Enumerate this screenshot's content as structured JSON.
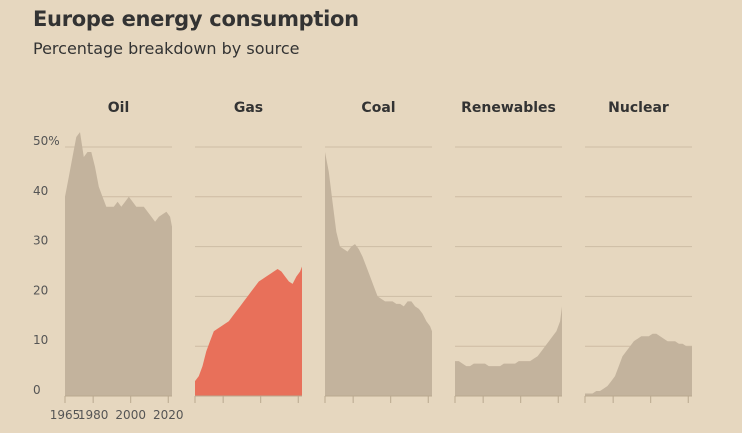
{
  "title": "Europe energy consumption",
  "subtitle": "Percentage breakdown by source",
  "colors": {
    "background": "#e6d7bf",
    "area_default": "#c3b39d",
    "area_highlight": "#e8705a",
    "grid": "#cdbca4"
  },
  "chart_data": {
    "type": "area",
    "ylim": [
      0,
      50
    ],
    "yticks": [
      0,
      10,
      20,
      30,
      40,
      50
    ],
    "ytick_labels": [
      "0",
      "10",
      "20",
      "30",
      "40",
      "50%"
    ],
    "xlim": [
      1965,
      2022
    ],
    "xticks": [
      1965,
      1980,
      2000,
      2020
    ],
    "xtick_labels": [
      "1965",
      "1980",
      "2000",
      "2020"
    ],
    "grid": true,
    "panels": [
      {
        "name": "Oil",
        "highlight": false,
        "x": [
          1965,
          1967,
          1969,
          1971,
          1973,
          1975,
          1977,
          1979,
          1981,
          1983,
          1985,
          1987,
          1989,
          1991,
          1993,
          1995,
          1997,
          1999,
          2001,
          2003,
          2005,
          2007,
          2009,
          2011,
          2013,
          2015,
          2017,
          2019,
          2021,
          2022
        ],
        "values": [
          40,
          44,
          48,
          52,
          53,
          48,
          49,
          49,
          46,
          42,
          40,
          38,
          38,
          38,
          39,
          38,
          39,
          40,
          39,
          38,
          38,
          38,
          37,
          36,
          35,
          36,
          36.5,
          37,
          36,
          34
        ]
      },
      {
        "name": "Gas",
        "highlight": true,
        "x": [
          1965,
          1967,
          1969,
          1971,
          1973,
          1975,
          1977,
          1979,
          1981,
          1983,
          1985,
          1987,
          1989,
          1991,
          1993,
          1995,
          1997,
          1999,
          2001,
          2003,
          2005,
          2007,
          2009,
          2011,
          2013,
          2015,
          2017,
          2019,
          2021,
          2022
        ],
        "values": [
          3,
          4,
          6,
          9,
          11,
          13,
          13.5,
          14,
          14.5,
          15,
          16,
          17,
          18,
          19,
          20,
          21,
          22,
          23,
          23.5,
          24,
          24.5,
          25,
          25.5,
          25,
          24,
          23,
          22.5,
          24,
          25,
          26
        ]
      },
      {
        "name": "Coal",
        "highlight": false,
        "x": [
          1965,
          1967,
          1969,
          1971,
          1973,
          1975,
          1977,
          1979,
          1981,
          1983,
          1985,
          1987,
          1989,
          1991,
          1993,
          1995,
          1997,
          1999,
          2001,
          2003,
          2005,
          2007,
          2009,
          2011,
          2013,
          2015,
          2017,
          2019,
          2021,
          2022
        ],
        "values": [
          49,
          45,
          39,
          33,
          30,
          29.5,
          29,
          30,
          30.5,
          29.5,
          28,
          26,
          24,
          22,
          20,
          19.5,
          19,
          19,
          19,
          18.5,
          18.5,
          18,
          19,
          19,
          18,
          17.5,
          16.5,
          15,
          14,
          13
        ]
      },
      {
        "name": "Renewables",
        "highlight": false,
        "x": [
          1965,
          1967,
          1969,
          1971,
          1973,
          1975,
          1977,
          1979,
          1981,
          1983,
          1985,
          1987,
          1989,
          1991,
          1993,
          1995,
          1997,
          1999,
          2001,
          2003,
          2005,
          2007,
          2009,
          2011,
          2013,
          2015,
          2017,
          2019,
          2021,
          2022
        ],
        "values": [
          7,
          7,
          6.5,
          6,
          6,
          6.5,
          6.5,
          6.5,
          6.5,
          6,
          6,
          6,
          6,
          6.5,
          6.5,
          6.5,
          6.5,
          7,
          7,
          7,
          7,
          7.5,
          8,
          9,
          10,
          11,
          12,
          13,
          15,
          18
        ]
      },
      {
        "name": "Nuclear",
        "highlight": false,
        "x": [
          1965,
          1967,
          1969,
          1971,
          1973,
          1975,
          1977,
          1979,
          1981,
          1983,
          1985,
          1987,
          1989,
          1991,
          1993,
          1995,
          1997,
          1999,
          2001,
          2003,
          2005,
          2007,
          2009,
          2011,
          2013,
          2015,
          2017,
          2019,
          2021,
          2022
        ],
        "values": [
          0.5,
          0.5,
          0.5,
          1,
          1,
          1.5,
          2,
          3,
          4,
          6,
          8,
          9,
          10,
          11,
          11.5,
          12,
          12,
          12,
          12.5,
          12.5,
          12,
          11.5,
          11,
          11,
          11,
          10.5,
          10.5,
          10,
          10,
          10
        ]
      }
    ]
  }
}
